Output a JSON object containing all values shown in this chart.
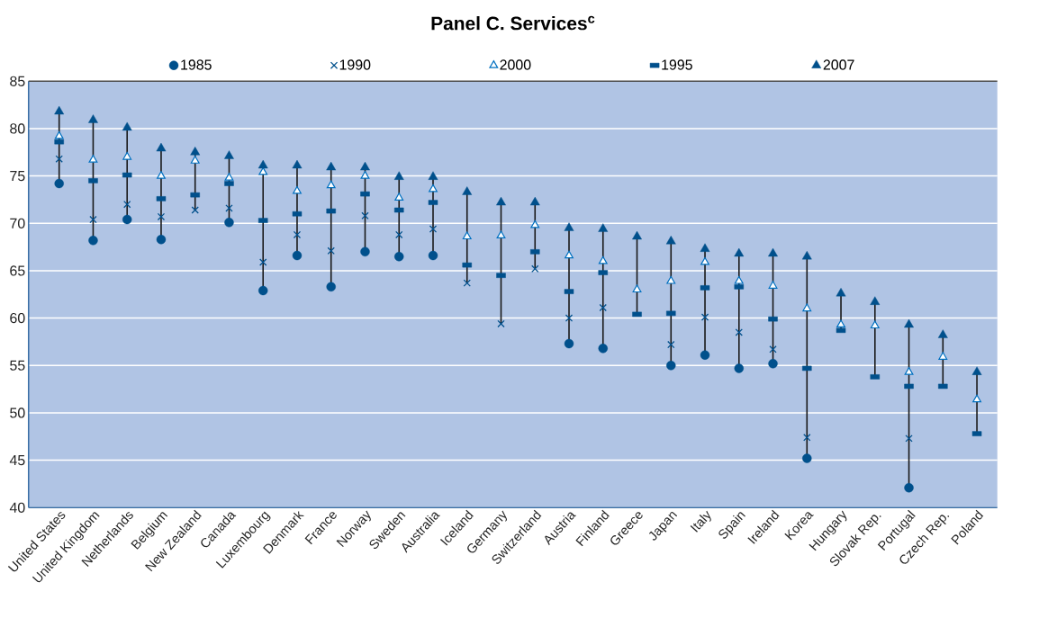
{
  "chart_data": {
    "type": "scatter",
    "title": "Panel C. Services$^{c}$",
    "categories": [
      "United States",
      "United Kingdom",
      "Netherlands",
      "Belgium",
      "New Zealand",
      "Canada",
      "Luxembourg",
      "Denmark",
      "France",
      "Norway",
      "Sweden",
      "Australia",
      "Iceland",
      "Germany",
      "Switzerland",
      "Austria",
      "Finland",
      "Greece",
      "Japan",
      "Italy",
      "Spain",
      "Ireland",
      "Korea",
      "Hungary",
      "Slovak Rep.",
      "Portugal",
      "Czech Rep.",
      "Poland"
    ],
    "series": [
      {
        "name": "1985",
        "color": "#00508c",
        "marker": "circle",
        "values": [
          74.2,
          68.2,
          70.4,
          68.3,
          null,
          70.1,
          62.9,
          66.6,
          63.3,
          67.0,
          66.5,
          66.6,
          null,
          null,
          null,
          57.3,
          56.8,
          null,
          55.0,
          56.1,
          54.7,
          55.2,
          45.2,
          null,
          null,
          42.1,
          null,
          null
        ]
      },
      {
        "name": "1990",
        "color": "#00508c",
        "marker": "cross",
        "values": [
          76.8,
          70.4,
          72.0,
          70.7,
          71.4,
          71.6,
          65.9,
          68.8,
          67.1,
          70.8,
          68.8,
          69.4,
          63.7,
          59.4,
          65.2,
          60.0,
          61.1,
          null,
          57.2,
          60.1,
          58.5,
          56.7,
          47.4,
          null,
          null,
          47.3,
          null,
          null
        ]
      },
      {
        "name": "2000",
        "color": "#0070c0",
        "marker": "triangle-open",
        "values": [
          79.2,
          76.7,
          77.0,
          75.0,
          76.6,
          74.8,
          75.4,
          73.4,
          74.0,
          75.0,
          72.7,
          73.6,
          68.6,
          68.7,
          69.8,
          66.6,
          66.0,
          63.0,
          63.9,
          65.9,
          63.9,
          63.4,
          61.0,
          59.3,
          59.2,
          54.3,
          55.9,
          51.4
        ]
      },
      {
        "name": "1995",
        "color": "#00508c",
        "marker": "square",
        "values": [
          78.6,
          74.5,
          75.1,
          72.6,
          73.0,
          74.2,
          70.3,
          71.0,
          71.3,
          73.1,
          71.4,
          72.2,
          65.6,
          64.5,
          67.0,
          62.8,
          64.8,
          60.4,
          60.5,
          63.2,
          63.3,
          59.9,
          54.7,
          58.7,
          53.8,
          52.8,
          52.8,
          47.8
        ]
      },
      {
        "name": "2007",
        "color": "#00508c",
        "marker": "triangle",
        "values": [
          81.8,
          80.9,
          80.1,
          77.9,
          77.5,
          77.1,
          76.1,
          76.1,
          75.9,
          75.9,
          74.9,
          74.9,
          73.3,
          72.2,
          72.2,
          69.5,
          69.4,
          68.6,
          68.1,
          67.3,
          66.8,
          66.8,
          66.5,
          62.6,
          61.7,
          59.3,
          58.2,
          54.3
        ]
      }
    ],
    "ylim": [
      40,
      85
    ],
    "yticks": [
      40,
      45,
      50,
      55,
      60,
      65,
      70,
      75,
      80,
      85
    ],
    "grid": "y",
    "legend": "top"
  }
}
